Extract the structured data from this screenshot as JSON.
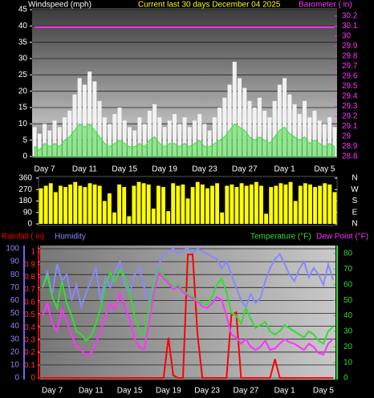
{
  "chart_data": [
    {
      "type": "bar",
      "title": "Current last 30 days December 04 2025",
      "y_label": "Windspeed (mph)",
      "y2_label": "Barometer ( in)",
      "grid": true,
      "categories": [
        null,
        null,
        "Day 7",
        null,
        null,
        null,
        null,
        null,
        null,
        null,
        "Day 11",
        null,
        null,
        null,
        null,
        null,
        null,
        null,
        "Day 15",
        null,
        null,
        null,
        null,
        null,
        null,
        null,
        "Day 19",
        null,
        null,
        null,
        null,
        null,
        null,
        null,
        "Day 23",
        null,
        null,
        null,
        null,
        null,
        null,
        null,
        "Day 27",
        null,
        null,
        null,
        null,
        null,
        null,
        null,
        "Day 1",
        null,
        null,
        null,
        null,
        null,
        null,
        null,
        "Day 5",
        null,
        null
      ],
      "ylim": [
        0,
        45
      ],
      "yticks": [
        0,
        5,
        10,
        15,
        20,
        25,
        30,
        35,
        40,
        45
      ],
      "y2lim": [
        28.8,
        30.2
      ],
      "y2ticks": [
        28.8,
        28.9,
        29,
        29.1,
        29.2,
        29.3,
        29.4,
        29.5,
        29.6,
        29.7,
        29.8,
        29.9,
        30,
        30.1,
        30.2
      ],
      "series": [
        {
          "style": "bar",
          "color": "#f2f2f2",
          "values": [
            9,
            7,
            10,
            8,
            11,
            9,
            12,
            14,
            19,
            24,
            22,
            26,
            23,
            17,
            12,
            10,
            13,
            15,
            11,
            9,
            8,
            12,
            10,
            14,
            16,
            12,
            9,
            11,
            13,
            10,
            12,
            9,
            11,
            13,
            10,
            8,
            12,
            15,
            18,
            22,
            29,
            24,
            21,
            17,
            15,
            18,
            14,
            12,
            17,
            22,
            24,
            19,
            16,
            13,
            17,
            12,
            14,
            11,
            10,
            12,
            9
          ]
        },
        {
          "style": "area",
          "color": "#44dd44",
          "values": [
            3,
            2,
            4,
            3,
            4,
            3,
            5,
            6,
            8,
            10,
            9,
            10,
            8,
            6,
            4,
            3,
            4,
            5,
            4,
            3,
            3,
            4,
            3,
            5,
            6,
            4,
            3,
            4,
            4,
            3,
            4,
            3,
            4,
            5,
            3,
            3,
            4,
            5,
            6,
            8,
            10,
            9,
            8,
            6,
            5,
            6,
            5,
            4,
            6,
            8,
            9,
            7,
            6,
            5,
            6,
            4,
            5,
            4,
            3,
            4,
            3
          ]
        },
        {
          "style": "line",
          "axis": "y2",
          "color": "#ff33ff",
          "values": [
            30.09,
            30.09,
            30.09,
            30.09,
            30.09,
            30.09,
            30.09,
            30.09,
            30.09,
            30.09,
            30.09,
            30.09,
            30.09,
            30.09,
            30.09,
            30.09,
            30.09,
            30.09,
            30.09,
            30.09,
            30.09,
            30.09,
            30.09,
            30.09,
            30.09,
            30.09,
            30.09,
            30.09,
            30.09,
            30.09,
            30.09,
            30.09,
            30.09,
            30.09,
            30.09,
            30.09,
            30.09,
            30.09,
            30.09,
            30.09,
            30.09,
            30.09,
            30.09,
            30.09,
            30.09,
            30.09,
            30.09,
            30.09,
            30.09,
            30.09,
            30.09,
            30.09,
            30.09,
            30.09,
            30.09,
            30.09,
            30.09,
            30.09,
            30.09,
            30.09,
            30.09
          ]
        }
      ]
    },
    {
      "type": "bar",
      "ylim": [
        0,
        360
      ],
      "yticks": [
        0,
        90,
        180,
        270,
        360
      ],
      "y2lim": [
        0,
        360
      ],
      "y2ticks": [
        {
          "value": 0,
          "label": "N"
        },
        {
          "value": 90,
          "label": "E"
        },
        {
          "value": 180,
          "label": "S"
        },
        {
          "value": 270,
          "label": "W"
        },
        {
          "value": 360,
          "label": "N"
        }
      ],
      "series": [
        {
          "style": "bar",
          "color": "#ffff00",
          "values": [
            280,
            300,
            320,
            250,
            300,
            290,
            310,
            330,
            300,
            290,
            320,
            310,
            300,
            180,
            240,
            90,
            310,
            290,
            60,
            300,
            330,
            320,
            310,
            120,
            300,
            290,
            100,
            320,
            300,
            310,
            200,
            290,
            330,
            310,
            280,
            300,
            320,
            90,
            300,
            310,
            290,
            320,
            300,
            310,
            330,
            300,
            80,
            290,
            300,
            320,
            310,
            330,
            180,
            300,
            320,
            310,
            290,
            300,
            320,
            310,
            250
          ]
        }
      ]
    },
    {
      "type": "line",
      "grid": true,
      "categories": [
        null,
        null,
        "Day 7",
        null,
        null,
        null,
        null,
        null,
        null,
        null,
        "Day 11",
        null,
        null,
        null,
        null,
        null,
        null,
        null,
        "Day 15",
        null,
        null,
        null,
        null,
        null,
        null,
        null,
        "Day 19",
        null,
        null,
        null,
        null,
        null,
        null,
        null,
        "Day 23",
        null,
        null,
        null,
        null,
        null,
        null,
        null,
        "Day 27",
        null,
        null,
        null,
        null,
        null,
        null,
        null,
        "Day 1",
        null,
        null,
        null,
        null,
        null,
        null,
        null,
        "Day 5",
        null,
        null
      ],
      "ylim": [
        0,
        100
      ],
      "yticks": [
        0,
        10,
        20,
        30,
        40,
        50,
        60,
        70,
        80,
        90,
        100
      ],
      "y2lim": [
        0,
        80
      ],
      "y2ticks": [
        0,
        10,
        20,
        30,
        40,
        50,
        60,
        70,
        80
      ],
      "y3lim": [
        0,
        1
      ],
      "y3ticks": [
        0,
        0.1,
        0.2,
        0.3,
        0.4,
        0.5,
        0.6,
        0.7,
        0.8,
        0.9,
        1
      ],
      "series": [
        {
          "name": "Rainfall ( in)",
          "axis": "y3",
          "color": "#ff0000",
          "values": [
            0,
            0,
            0,
            0,
            0,
            0,
            0,
            0,
            0,
            0,
            0,
            0,
            0,
            0,
            0,
            0,
            0,
            0,
            0,
            0,
            0,
            0,
            0,
            0,
            0,
            0,
            0.32,
            0.02,
            0,
            0,
            0.98,
            0.98,
            0.35,
            0,
            0,
            0,
            0,
            0,
            0,
            0.5,
            0.52,
            0,
            0,
            0,
            0,
            0,
            0,
            0,
            0.15,
            0,
            0,
            0,
            0,
            0,
            0,
            0,
            0,
            0,
            0,
            0,
            0
          ]
        },
        {
          "name": "Humidity",
          "color": "#8888ff",
          "values": [
            70,
            82,
            65,
            88,
            75,
            80,
            60,
            72,
            55,
            66,
            75,
            85,
            60,
            78,
            70,
            82,
            90,
            72,
            65,
            80,
            85,
            70,
            60,
            75,
            88,
            95,
            98,
            100,
            96,
            99,
            100,
            97,
            100,
            98,
            96,
            94,
            92,
            85,
            90,
            80,
            70,
            60,
            55,
            65,
            58,
            62,
            75,
            85,
            92,
            96,
            88,
            80,
            75,
            84,
            90,
            78,
            85,
            80,
            72,
            88,
            76
          ]
        },
        {
          "name": "Temperature (°F)",
          "axis": "y2",
          "color": "#33dd33",
          "values": [
            58,
            66,
            52,
            45,
            62,
            48,
            40,
            30,
            28,
            24,
            27,
            35,
            45,
            60,
            68,
            62,
            70,
            65,
            55,
            40,
            30,
            28,
            45,
            62,
            70,
            66,
            62,
            58,
            60,
            56,
            54,
            52,
            50,
            48,
            47,
            52,
            60,
            64,
            55,
            42,
            40,
            35,
            45,
            38,
            32,
            34,
            36,
            30,
            28,
            30,
            34,
            32,
            30,
            28,
            26,
            30,
            28,
            24,
            22,
            30,
            33
          ]
        },
        {
          "name": "Dew Point (°F)",
          "axis": "y2",
          "color": "#ff33ff",
          "values": [
            40,
            48,
            35,
            30,
            44,
            36,
            28,
            20,
            18,
            14,
            16,
            22,
            30,
            40,
            48,
            44,
            55,
            45,
            38,
            25,
            20,
            18,
            35,
            55,
            68,
            64,
            61,
            57,
            59,
            55,
            53,
            51,
            49,
            46,
            45,
            48,
            52,
            50,
            40,
            28,
            26,
            22,
            25,
            20,
            18,
            20,
            24,
            18,
            19,
            22,
            25,
            23,
            22,
            20,
            18,
            22,
            20,
            16,
            15,
            22,
            25
          ]
        }
      ]
    }
  ]
}
